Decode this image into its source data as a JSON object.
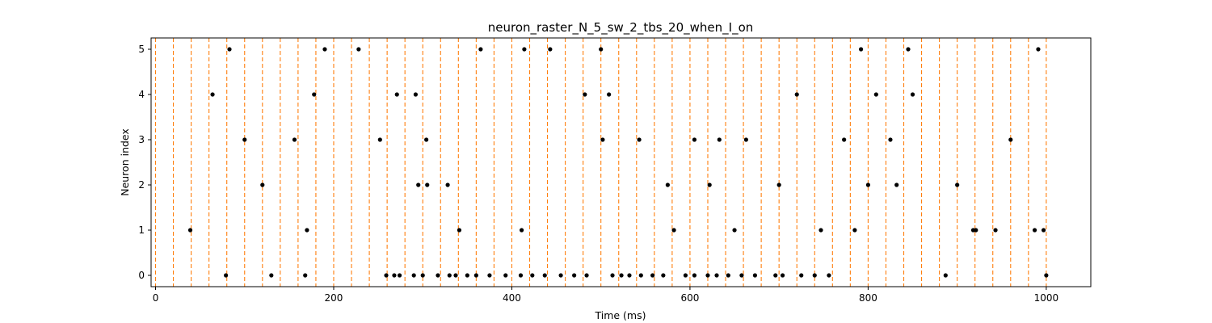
{
  "chart_data": {
    "type": "scatter",
    "title": "neuron_raster_N_5_sw_2_tbs_20_when_I_on",
    "xlabel": "Time (ms)",
    "ylabel": "Neuron index",
    "xlim": [
      -5,
      1050
    ],
    "ylim": [
      -0.25,
      5.25
    ],
    "xticks": [
      0,
      200,
      400,
      600,
      800,
      1000
    ],
    "yticks": [
      0,
      1,
      2,
      3,
      4,
      5
    ],
    "grid": false,
    "legend": "none",
    "colors": {
      "spike": "#000000",
      "stim_line": "#ff7f0e"
    },
    "stimulus_onsets": [
      0,
      20,
      40,
      60,
      80,
      100,
      120,
      140,
      160,
      180,
      200,
      220,
      240,
      260,
      280,
      300,
      320,
      340,
      360,
      380,
      400,
      420,
      440,
      460,
      480,
      500,
      520,
      540,
      560,
      580,
      600,
      620,
      640,
      660,
      680,
      700,
      720,
      740,
      760,
      780,
      800,
      820,
      840,
      860,
      880,
      900,
      920,
      940,
      960,
      980,
      1000
    ],
    "spikes": [
      {
        "neuron": 0,
        "times": [
          79,
          130,
          168,
          259,
          268,
          274,
          290,
          300,
          317,
          330,
          337,
          350,
          360,
          375,
          393,
          410,
          423,
          437,
          455,
          470,
          484,
          513,
          523,
          532,
          545,
          558,
          570,
          595,
          605,
          620,
          630,
          643,
          658,
          673,
          696,
          704,
          725,
          740,
          756,
          887,
          1000
        ]
      },
      {
        "neuron": 1,
        "times": [
          39,
          170,
          341,
          411,
          582,
          650,
          747,
          785,
          918,
          921,
          943,
          987,
          997
        ]
      },
      {
        "neuron": 2,
        "times": [
          120,
          295,
          305,
          328,
          575,
          622,
          700,
          800,
          832,
          900
        ]
      },
      {
        "neuron": 3,
        "times": [
          100,
          156,
          252,
          304,
          502,
          543,
          605,
          633,
          663,
          773,
          825,
          960
        ]
      },
      {
        "neuron": 4,
        "times": [
          64,
          178,
          271,
          292,
          482,
          509,
          720,
          809,
          850
        ]
      },
      {
        "neuron": 5,
        "times": [
          83,
          190,
          228,
          365,
          414,
          443,
          500,
          792,
          845,
          991
        ]
      }
    ]
  }
}
